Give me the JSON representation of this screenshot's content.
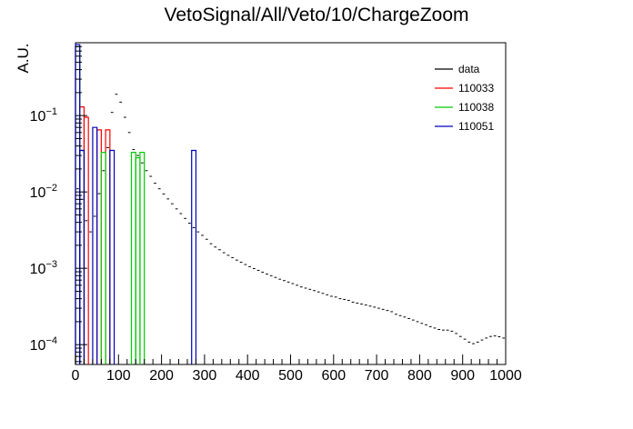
{
  "chart_data": {
    "type": "histogram",
    "title": "VetoSignal/All/Veto/10/ChargeZoom",
    "xlabel": "",
    "ylabel": "A.U.",
    "xlim": [
      0,
      1000
    ],
    "ylim": [
      5.5e-05,
      0.9
    ],
    "yscale": "log",
    "x_ticks": [
      0,
      100,
      200,
      300,
      400,
      500,
      600,
      700,
      800,
      900,
      1000
    ],
    "x_tick_labels": [
      "0",
      "100",
      "200",
      "300",
      "400",
      "500",
      "600",
      "700",
      "800",
      "900",
      "1000"
    ],
    "y_ticks": [
      0.0001,
      0.001,
      0.01,
      0.1
    ],
    "y_tick_labels": [
      {
        "base": "10",
        "exp": "−4"
      },
      {
        "base": "10",
        "exp": "−3"
      },
      {
        "base": "10",
        "exp": "−2"
      },
      {
        "base": "10",
        "exp": "−1"
      }
    ],
    "legend_position": "top-right",
    "data_series": {
      "name": "data",
      "color": "#000000",
      "bin_width": 10,
      "x": [
        5,
        15,
        25,
        35,
        45,
        55,
        65,
        75,
        85,
        95,
        105,
        115,
        125,
        135,
        145,
        155,
        165,
        175,
        185,
        195,
        205,
        215,
        225,
        235,
        245,
        255,
        265,
        275,
        285,
        295,
        305,
        315,
        325,
        335,
        345,
        355,
        365,
        375,
        385,
        395,
        405,
        415,
        425,
        435,
        445,
        455,
        465,
        475,
        485,
        495,
        505,
        515,
        525,
        535,
        545,
        555,
        565,
        575,
        585,
        595,
        605,
        615,
        625,
        635,
        645,
        655,
        665,
        675,
        685,
        695,
        705,
        715,
        725,
        735,
        745,
        755,
        765,
        775,
        785,
        795,
        805,
        815,
        825,
        835,
        845,
        855,
        865,
        875,
        885,
        895,
        905,
        915,
        925,
        935,
        945,
        955,
        965,
        975,
        985,
        995
      ],
      "y": [
        0.011,
        0.008,
        0.0042,
        0.003,
        0.0048,
        0.0095,
        0.019,
        0.038,
        0.11,
        0.19,
        0.15,
        0.095,
        0.06,
        0.036,
        0.03,
        0.024,
        0.019,
        0.016,
        0.013,
        0.011,
        0.0094,
        0.0081,
        0.007,
        0.006,
        0.0052,
        0.0045,
        0.0039,
        0.0034,
        0.003,
        0.0027,
        0.0024,
        0.0021,
        0.0019,
        0.00175,
        0.0016,
        0.00148,
        0.00138,
        0.00128,
        0.0012,
        0.00112,
        0.00105,
        0.00099,
        0.00094,
        0.00089,
        0.00084,
        0.0008,
        0.00076,
        0.00072,
        0.00069,
        0.00066,
        0.00063,
        0.0006,
        0.00057,
        0.00055,
        0.00053,
        0.00051,
        0.00049,
        0.00047,
        0.00045,
        0.00043,
        0.00042,
        0.0004,
        0.00039,
        0.00038,
        0.00036,
        0.00035,
        0.00034,
        0.00033,
        0.00032,
        0.00031,
        0.0003,
        0.00029,
        0.00028,
        0.00027,
        0.00025,
        0.00024,
        0.00023,
        0.00022,
        0.00021,
        0.0002,
        0.00019,
        0.000182,
        0.000172,
        0.000165,
        0.000158,
        0.000155,
        0.000155,
        0.00015,
        0.00014,
        0.000128,
        0.000118,
        0.000108,
        0.000103,
        0.000108,
        0.000115,
        0.000122,
        0.000128,
        0.00013,
        0.000127,
        0.000122
      ]
    },
    "series": [
      {
        "name": "110033",
        "color": "#ff0000",
        "bins": [
          [
            0,
            10,
            0.8
          ],
          [
            10,
            20,
            0.13
          ],
          [
            20,
            30,
            0.095
          ],
          [
            50,
            60,
            0.065
          ],
          [
            70,
            80,
            0.065
          ]
        ]
      },
      {
        "name": "110038",
        "color": "#00cc00",
        "bins": [
          [
            0,
            10,
            0.8
          ],
          [
            10,
            20,
            0.035
          ],
          [
            60,
            70,
            0.033
          ],
          [
            130,
            140,
            0.033
          ],
          [
            140,
            150,
            0.028
          ],
          [
            150,
            160,
            0.033
          ]
        ]
      },
      {
        "name": "110051",
        "color": "#0000bb",
        "bins": [
          [
            0,
            10,
            0.85
          ],
          [
            10,
            20,
            0.035
          ],
          [
            40,
            50,
            0.07
          ],
          [
            80,
            90,
            0.035
          ],
          [
            270,
            280,
            0.035
          ]
        ]
      }
    ],
    "legend": [
      "data",
      "110033",
      "110038",
      "110051"
    ]
  }
}
